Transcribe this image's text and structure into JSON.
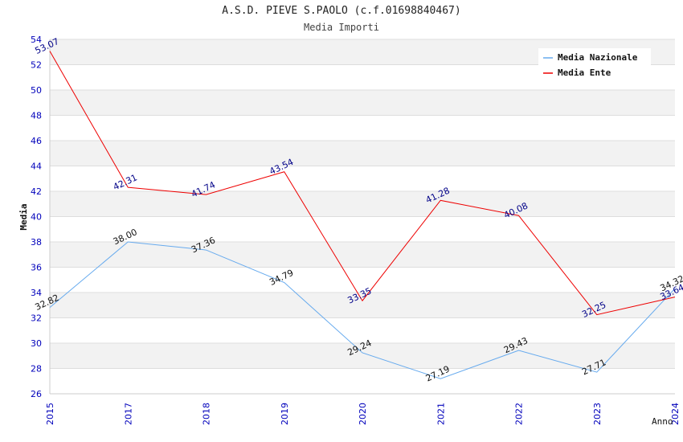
{
  "chart_data": {
    "type": "line",
    "title": "A.S.D. PIEVE S.PAOLO (c.f.01698840467)",
    "subtitle": "Media Importi",
    "xlabel": "Anno",
    "ylabel": "Media",
    "categories": [
      "2015",
      "2017",
      "2018",
      "2019",
      "2020",
      "2021",
      "2022",
      "2023",
      "2024"
    ],
    "ylim": [
      26,
      54
    ],
    "yticks": [
      26,
      28,
      30,
      32,
      34,
      36,
      38,
      40,
      42,
      44,
      46,
      48,
      50,
      52,
      54
    ],
    "grid": true,
    "legend_position": "top-right",
    "series": [
      {
        "name": "Media Nazionale",
        "color": "#66aaee",
        "label_color": "#111111",
        "values": [
          32.82,
          38.0,
          37.36,
          34.79,
          29.24,
          27.19,
          29.43,
          27.71,
          34.32
        ],
        "labels": [
          "32.82",
          "38.00",
          "37.36",
          "34.79",
          "29.24",
          "27.19",
          "29.43",
          "27.71",
          "34.32"
        ]
      },
      {
        "name": "Media Ente",
        "color": "#ee0000",
        "label_color": "#000088",
        "values": [
          53.07,
          42.31,
          41.74,
          43.54,
          33.35,
          41.28,
          40.08,
          32.25,
          33.64
        ],
        "labels": [
          "53.07",
          "42.31",
          "41.74",
          "43.54",
          "33.35",
          "41.28",
          "40.08",
          "32.25",
          "33.64"
        ]
      }
    ]
  }
}
